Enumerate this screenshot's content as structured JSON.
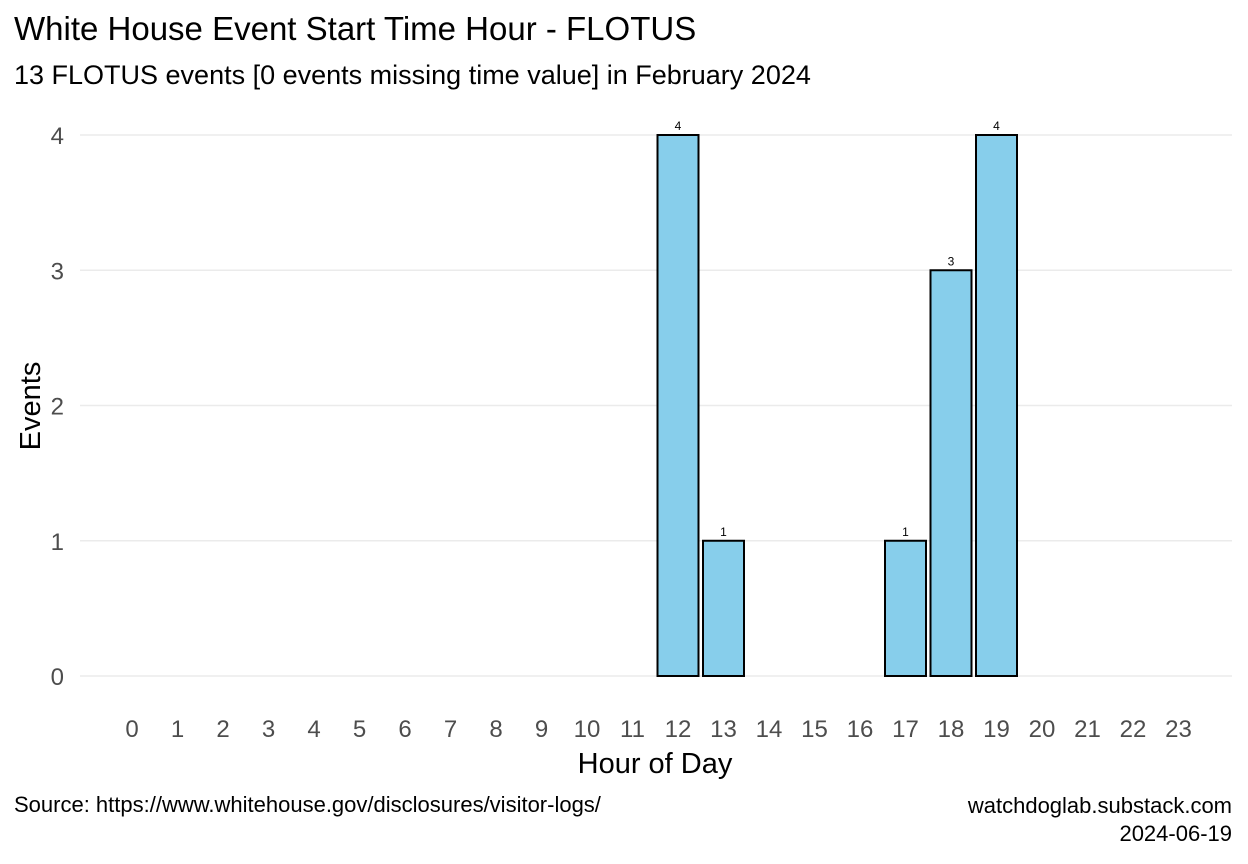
{
  "title": "White House Event Start Time Hour - FLOTUS",
  "subtitle": "13 FLOTUS events [0 events missing time value] in February 2024",
  "caption": {
    "source": "Source: https://www.whitehouse.gov/disclosures/visitor-logs/",
    "site": "watchdoglab.substack.com",
    "date": "2024-06-19"
  },
  "chart_data": {
    "type": "bar",
    "categories": [
      "0",
      "1",
      "2",
      "3",
      "4",
      "5",
      "6",
      "7",
      "8",
      "9",
      "10",
      "11",
      "12",
      "13",
      "14",
      "15",
      "16",
      "17",
      "18",
      "19",
      "20",
      "21",
      "22",
      "23"
    ],
    "values": [
      0,
      0,
      0,
      0,
      0,
      0,
      0,
      0,
      0,
      0,
      0,
      0,
      4,
      1,
      0,
      0,
      0,
      1,
      3,
      4,
      0,
      0,
      0,
      0
    ],
    "xlabel": "Hour of Day",
    "ylabel": "Events",
    "ylim": [
      0,
      4
    ],
    "yticks": [
      0,
      1,
      2,
      3,
      4
    ],
    "grid": true,
    "bar_color": "#87CEEB",
    "bar_outline": "#000000",
    "data_labels": true
  }
}
